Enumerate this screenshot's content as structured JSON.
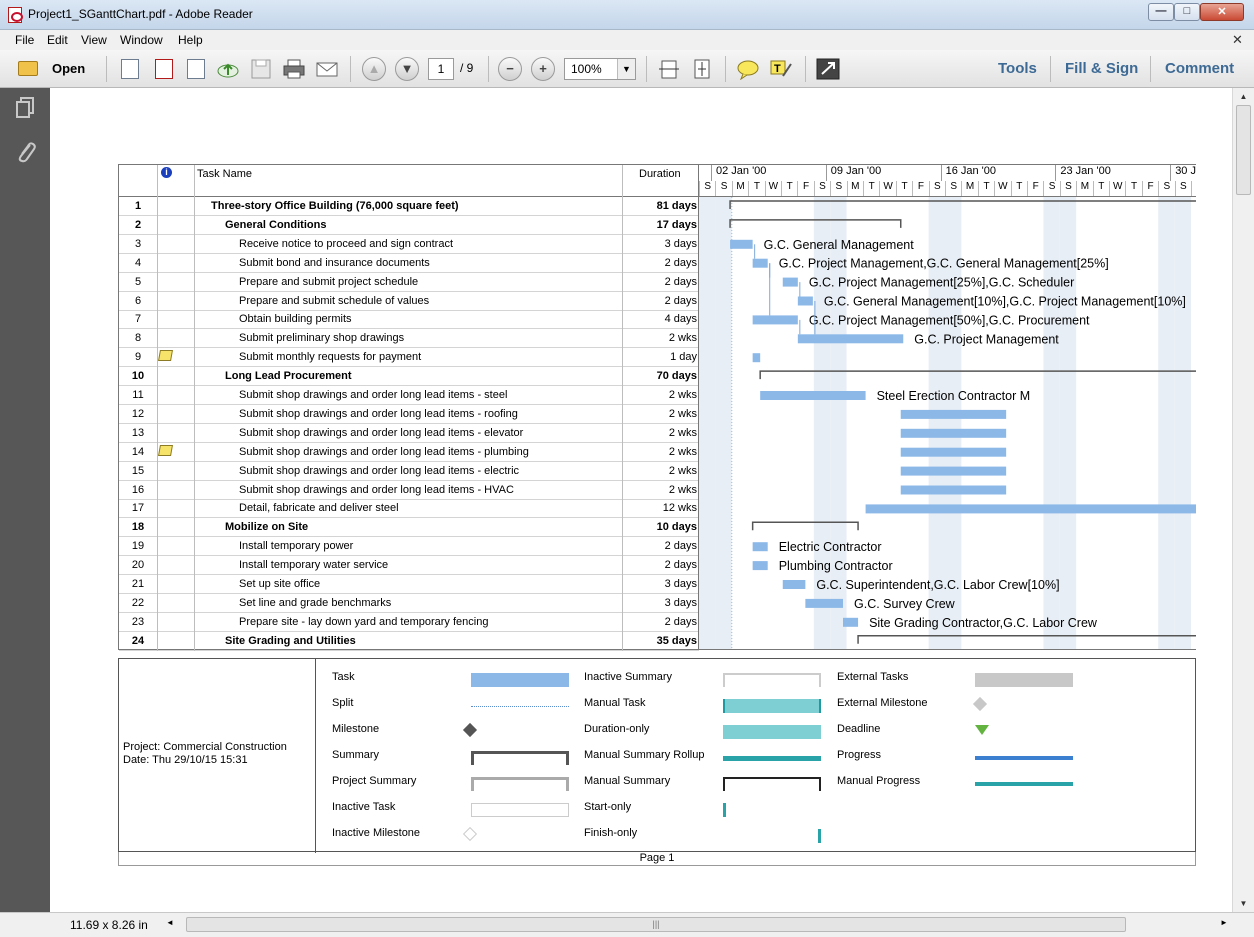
{
  "window": {
    "title": "Project1_SGanttChart.pdf - Adobe Reader",
    "min": "—",
    "max": "□",
    "close": "✕"
  },
  "menu": [
    "File",
    "Edit",
    "View",
    "Window",
    "Help"
  ],
  "menu_close": "✕",
  "toolbar": {
    "open_label": "Open",
    "page_current": "1",
    "page_total": "/ 9",
    "zoom": "100%",
    "tools_label": "Tools",
    "fill_sign_label": "Fill & Sign",
    "comment_label": "Comment"
  },
  "status": {
    "page_size": "11.69 x 8.26 in"
  },
  "table": {
    "headers": {
      "info": "i",
      "task_name": "Task Name",
      "duration": "Duration"
    },
    "rows": [
      {
        "id": "1",
        "name": "Three-story Office Building (76,000 square feet)",
        "duration": "81 days",
        "level": 1,
        "summary": true,
        "note": false
      },
      {
        "id": "2",
        "name": "General Conditions",
        "duration": "17 days",
        "level": 2,
        "summary": true,
        "note": false
      },
      {
        "id": "3",
        "name": "Receive notice to proceed and sign contract",
        "duration": "3 days",
        "level": 3,
        "summary": false,
        "note": false
      },
      {
        "id": "4",
        "name": "Submit bond and insurance documents",
        "duration": "2 days",
        "level": 3,
        "summary": false,
        "note": false
      },
      {
        "id": "5",
        "name": "Prepare and submit project schedule",
        "duration": "2 days",
        "level": 3,
        "summary": false,
        "note": false
      },
      {
        "id": "6",
        "name": "Prepare and submit schedule of values",
        "duration": "2 days",
        "level": 3,
        "summary": false,
        "note": false
      },
      {
        "id": "7",
        "name": "Obtain building permits",
        "duration": "4 days",
        "level": 3,
        "summary": false,
        "note": false
      },
      {
        "id": "8",
        "name": "Submit preliminary shop drawings",
        "duration": "2 wks",
        "level": 3,
        "summary": false,
        "note": false
      },
      {
        "id": "9",
        "name": "Submit monthly requests for payment",
        "duration": "1 day",
        "level": 3,
        "summary": false,
        "note": true
      },
      {
        "id": "10",
        "name": "Long Lead Procurement",
        "duration": "70 days",
        "level": 2,
        "summary": true,
        "note": false
      },
      {
        "id": "11",
        "name": "Submit shop drawings and order long lead items - steel",
        "duration": "2 wks",
        "level": 3,
        "summary": false,
        "note": false
      },
      {
        "id": "12",
        "name": "Submit shop drawings and order long lead items - roofing",
        "duration": "2 wks",
        "level": 3,
        "summary": false,
        "note": false
      },
      {
        "id": "13",
        "name": "Submit shop drawings and order long lead items - elevator",
        "duration": "2 wks",
        "level": 3,
        "summary": false,
        "note": false
      },
      {
        "id": "14",
        "name": "Submit shop drawings and order long lead items - plumbing",
        "duration": "2 wks",
        "level": 3,
        "summary": false,
        "note": true
      },
      {
        "id": "15",
        "name": "Submit shop drawings and order long lead items - electric",
        "duration": "2 wks",
        "level": 3,
        "summary": false,
        "note": false
      },
      {
        "id": "16",
        "name": "Submit shop drawings and order long lead items - HVAC",
        "duration": "2 wks",
        "level": 3,
        "summary": false,
        "note": false
      },
      {
        "id": "17",
        "name": "Detail, fabricate and deliver steel",
        "duration": "12 wks",
        "level": 3,
        "summary": false,
        "note": false
      },
      {
        "id": "18",
        "name": "Mobilize on Site",
        "duration": "10 days",
        "level": 2,
        "summary": true,
        "note": false
      },
      {
        "id": "19",
        "name": "Install temporary power",
        "duration": "2 days",
        "level": 3,
        "summary": false,
        "note": false
      },
      {
        "id": "20",
        "name": "Install temporary water service",
        "duration": "2 days",
        "level": 3,
        "summary": false,
        "note": false
      },
      {
        "id": "21",
        "name": "Set up site office",
        "duration": "3 days",
        "level": 3,
        "summary": false,
        "note": false
      },
      {
        "id": "22",
        "name": "Set line and grade benchmarks",
        "duration": "3 days",
        "level": 3,
        "summary": false,
        "note": false
      },
      {
        "id": "23",
        "name": "Prepare site - lay down yard and temporary fencing",
        "duration": "2 days",
        "level": 3,
        "summary": false,
        "note": false
      },
      {
        "id": "24",
        "name": "Site Grading and Utilities",
        "duration": "35 days",
        "level": 2,
        "summary": true,
        "note": false
      }
    ]
  },
  "timeline": {
    "weeks": [
      "02 Jan '00",
      "09 Jan '00",
      "16 Jan '00",
      "23 Jan '00",
      "30 J"
    ],
    "days_pattern": [
      "S",
      "M",
      "T",
      "W",
      "T",
      "F",
      "S"
    ]
  },
  "bars": [
    {
      "row": 1,
      "kind": "summary",
      "start_day": 3,
      "end_day": 101,
      "label": ""
    },
    {
      "row": 2,
      "kind": "summary",
      "start_day": 3,
      "end_day": 37,
      "label": ""
    },
    {
      "row": 3,
      "kind": "task",
      "start_day": 3,
      "end_day": 7.5,
      "label": "G.C. General Management"
    },
    {
      "row": 4,
      "kind": "task",
      "start_day": 7.5,
      "end_day": 10.5,
      "label": "G.C. Project Management,G.C. General Management[25%]"
    },
    {
      "row": 5,
      "kind": "task",
      "start_day": 13.5,
      "end_day": 16.5,
      "label": "G.C. Project Management[25%],G.C. Scheduler"
    },
    {
      "row": 6,
      "kind": "task",
      "start_day": 16.5,
      "end_day": 19.5,
      "label": "G.C. General Management[10%],G.C. Project Management[10%]"
    },
    {
      "row": 7,
      "kind": "task",
      "start_day": 7.5,
      "end_day": 16.5,
      "label": "G.C. Project Management[50%],G.C. Procurement"
    },
    {
      "row": 8,
      "kind": "task",
      "start_day": 16.5,
      "end_day": 37.5,
      "label": "G.C. Project Management"
    },
    {
      "row": 9,
      "kind": "task",
      "start_day": 7.5,
      "end_day": 9,
      "label": ""
    },
    {
      "row": 10,
      "kind": "summary",
      "start_day": 9,
      "end_day": 101,
      "label": ""
    },
    {
      "row": 11,
      "kind": "task",
      "start_day": 9,
      "end_day": 30,
      "label": "Steel Erection Contractor M"
    },
    {
      "row": 12,
      "kind": "task",
      "start_day": 37,
      "end_day": 58,
      "label": ""
    },
    {
      "row": 13,
      "kind": "task",
      "start_day": 37,
      "end_day": 58,
      "label": ""
    },
    {
      "row": 14,
      "kind": "task",
      "start_day": 37,
      "end_day": 58,
      "label": ""
    },
    {
      "row": 15,
      "kind": "task",
      "start_day": 37,
      "end_day": 58,
      "label": ""
    },
    {
      "row": 16,
      "kind": "task",
      "start_day": 37,
      "end_day": 58,
      "label": ""
    },
    {
      "row": 17,
      "kind": "task",
      "start_day": 30,
      "end_day": 101,
      "label": ""
    },
    {
      "row": 18,
      "kind": "summary",
      "start_day": 7.5,
      "end_day": 28.5,
      "label": ""
    },
    {
      "row": 19,
      "kind": "task",
      "start_day": 7.5,
      "end_day": 10.5,
      "label": "Electric Contractor"
    },
    {
      "row": 20,
      "kind": "task",
      "start_day": 7.5,
      "end_day": 10.5,
      "label": "Plumbing Contractor"
    },
    {
      "row": 21,
      "kind": "task",
      "start_day": 13.5,
      "end_day": 18,
      "label": "G.C. Superintendent,G.C. Labor Crew[10%]"
    },
    {
      "row": 22,
      "kind": "task",
      "start_day": 18,
      "end_day": 25.5,
      "label": "G.C. Survey Crew"
    },
    {
      "row": 23,
      "kind": "task",
      "start_day": 25.5,
      "end_day": 28.5,
      "label": "Site Grading Contractor,G.C. Labor Crew"
    },
    {
      "row": 24,
      "kind": "summary",
      "start_day": 28.5,
      "end_day": 101,
      "label": ""
    }
  ],
  "legend": {
    "project": "Project: Commercial Construction",
    "date": "Date: Thu 29/10/15 15:31",
    "items": [
      {
        "label": "Task",
        "col": 0,
        "row": 0,
        "sym": "task"
      },
      {
        "label": "Split",
        "col": 0,
        "row": 1,
        "sym": "split"
      },
      {
        "label": "Milestone",
        "col": 0,
        "row": 2,
        "sym": "milestone"
      },
      {
        "label": "Summary",
        "col": 0,
        "row": 3,
        "sym": "summary"
      },
      {
        "label": "Project Summary",
        "col": 0,
        "row": 4,
        "sym": "project-summary"
      },
      {
        "label": "Inactive Task",
        "col": 0,
        "row": 5,
        "sym": "inactive-task"
      },
      {
        "label": "Inactive Milestone",
        "col": 0,
        "row": 6,
        "sym": "inactive-milestone"
      },
      {
        "label": "Inactive Summary",
        "col": 1,
        "row": 0,
        "sym": "inactive-summary"
      },
      {
        "label": "Manual Task",
        "col": 1,
        "row": 1,
        "sym": "manual-task"
      },
      {
        "label": "Duration-only",
        "col": 1,
        "row": 2,
        "sym": "duration-only"
      },
      {
        "label": "Manual Summary Rollup",
        "col": 1,
        "row": 3,
        "sym": "manual-summary-rollup"
      },
      {
        "label": "Manual Summary",
        "col": 1,
        "row": 4,
        "sym": "manual-summary"
      },
      {
        "label": "Start-only",
        "col": 1,
        "row": 5,
        "sym": "start-only"
      },
      {
        "label": "Finish-only",
        "col": 1,
        "row": 6,
        "sym": "finish-only"
      },
      {
        "label": "External Tasks",
        "col": 2,
        "row": 0,
        "sym": "external-tasks"
      },
      {
        "label": "External Milestone",
        "col": 2,
        "row": 1,
        "sym": "external-milestone"
      },
      {
        "label": "Deadline",
        "col": 2,
        "row": 2,
        "sym": "deadline"
      },
      {
        "label": "Progress",
        "col": 2,
        "row": 3,
        "sym": "progress"
      },
      {
        "label": "Manual Progress",
        "col": 2,
        "row": 4,
        "sym": "manual-progress"
      }
    ]
  },
  "page_footer": "Page 1",
  "colors": {
    "task_bar": "#8cb8e8",
    "summary_line": "#555555",
    "shading": "#e8eef5",
    "link": "#7ea9d8"
  }
}
